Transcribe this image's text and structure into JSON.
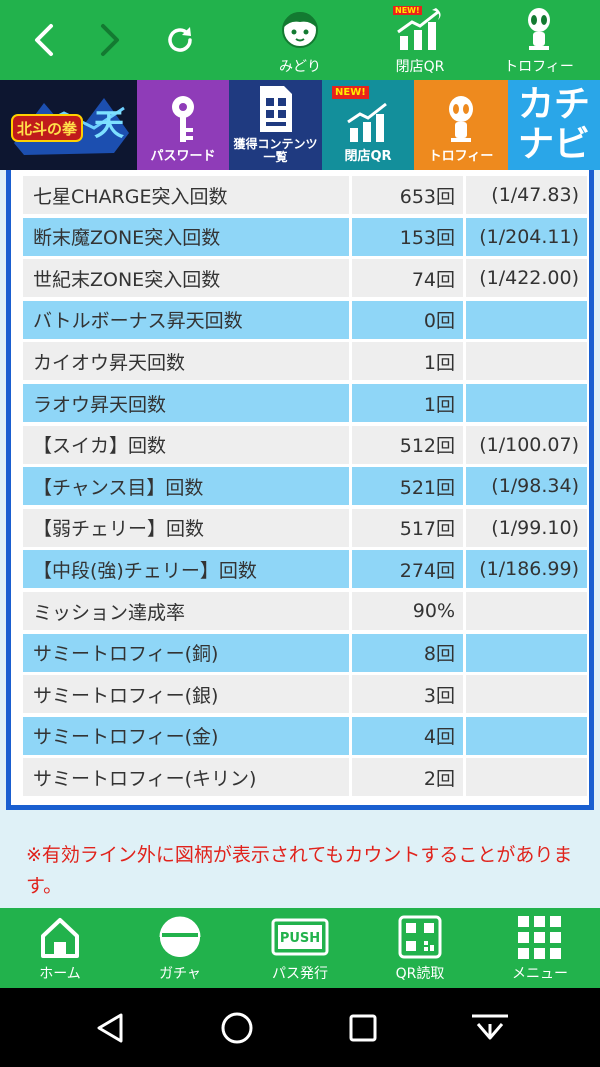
{
  "topbar": {
    "items": [
      {
        "label": "みどり",
        "icon": "girl-face-icon"
      },
      {
        "label": "閉店QR",
        "icon": "rising-chart-icon",
        "badge": "NEW!"
      },
      {
        "label": "トロフィー",
        "icon": "alien-trophy-icon"
      }
    ]
  },
  "banner": {
    "logo_text": "北斗の拳",
    "password_label": "パスワード",
    "contents_label_1": "獲得コンテンツ",
    "contents_label_2": "一覧",
    "closing_qr_label": "閉店QR",
    "closing_qr_badge": "NEW!",
    "trophy_label": "トロフィー",
    "kachinavi_text": "カチナビ"
  },
  "table": {
    "rows": [
      {
        "label": "七星CHARGE突入回数",
        "value": "653回",
        "rate": "(1/47.83)"
      },
      {
        "label": "断末魔ZONE突入回数",
        "value": "153回",
        "rate": "(1/204.11)"
      },
      {
        "label": "世紀末ZONE突入回数",
        "value": "74回",
        "rate": "(1/422.00)"
      },
      {
        "label": "バトルボーナス昇天回数",
        "value": "0回",
        "rate": ""
      },
      {
        "label": "カイオウ昇天回数",
        "value": "1回",
        "rate": ""
      },
      {
        "label": "ラオウ昇天回数",
        "value": "1回",
        "rate": ""
      },
      {
        "label": "【スイカ】回数",
        "value": "512回",
        "rate": "(1/100.07)"
      },
      {
        "label": "【チャンス目】回数",
        "value": "521回",
        "rate": "(1/98.34)"
      },
      {
        "label": "【弱チェリー】回数",
        "value": "517回",
        "rate": "(1/99.10)"
      },
      {
        "label": "【中段(強)チェリー】回数",
        "value": "274回",
        "rate": "(1/186.99)"
      },
      {
        "label": "ミッション達成率",
        "value": "90%",
        "rate": ""
      },
      {
        "label": "サミートロフィー(銅)",
        "value": "8回",
        "rate": ""
      },
      {
        "label": "サミートロフィー(銀)",
        "value": "3回",
        "rate": ""
      },
      {
        "label": "サミートロフィー(金)",
        "value": "4回",
        "rate": ""
      },
      {
        "label": "サミートロフィー(キリン)",
        "value": "2回",
        "rate": ""
      }
    ]
  },
  "notice": {
    "text": "※有効ライン外に図柄が表示されてもカウントすることがあります。"
  },
  "tabbar": {
    "items": [
      {
        "label": "ホーム",
        "icon": "home-icon"
      },
      {
        "label": "ガチャ",
        "icon": "gacha-capsule-icon"
      },
      {
        "label": "パス発行",
        "icon": "push-pass-icon",
        "icon_text": "PUSH"
      },
      {
        "label": "QR読取",
        "icon": "qr-code-icon"
      },
      {
        "label": "メニュー",
        "icon": "grid-menu-icon"
      }
    ]
  },
  "colors": {
    "toolbar_green": "#22b24c",
    "row_blue": "#8fd6f7",
    "row_gray": "#eeeeee",
    "frame_blue": "#1a5fd0",
    "notice_red": "#e0231c"
  }
}
